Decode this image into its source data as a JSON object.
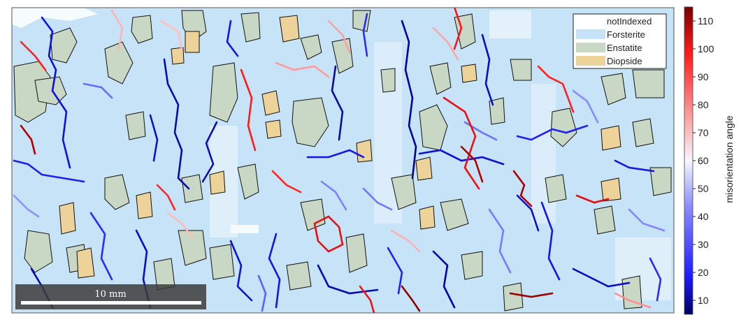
{
  "legend": {
    "entries": [
      {
        "label": "notIndexed",
        "color": "#ffffff"
      },
      {
        "label": "Forsterite",
        "color": "#c6e3f7"
      },
      {
        "label": "Enstatite",
        "color": "#c8d8c4"
      },
      {
        "label": "Diopside",
        "color": "#edd29a"
      }
    ]
  },
  "scalebar": {
    "label": "10 mm"
  },
  "colorbar": {
    "label": "misorientation angle",
    "ticks": [
      "10",
      "20",
      "30",
      "40",
      "50",
      "60",
      "70",
      "80",
      "90",
      "100",
      "110"
    ],
    "range": [
      5,
      115
    ],
    "colors": {
      "low": "#000080",
      "mid": "#ffffff",
      "high": "#8b0000"
    }
  },
  "colors": {
    "forsterite": "#c6e3f7",
    "enstatite": "#c8d8c4",
    "diopside": "#edd29a",
    "grain_boundary": "#111111"
  }
}
